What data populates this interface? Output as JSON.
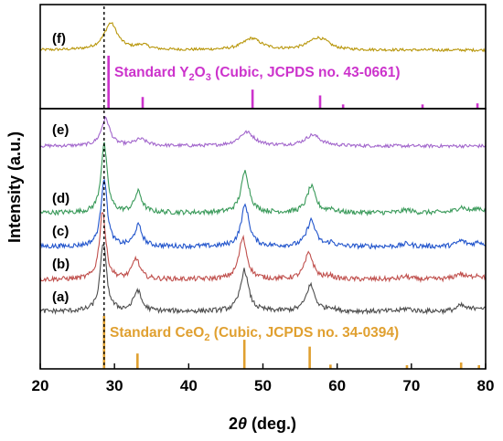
{
  "chart_data": [
    {
      "type": "line",
      "panel": "upper",
      "xlim": [
        20,
        80
      ],
      "ylabel": "Intensity (a.u.)",
      "dashed_reference_x": 28.6,
      "series": [
        {
          "name": "(f)",
          "color": "#b8960a",
          "baseline": 0.05,
          "noise": 0.035,
          "peaks": [
            {
              "x": 29.5,
              "h": 0.7,
              "w": 2.2
            },
            {
              "x": 33.8,
              "h": 0.12,
              "w": 2.0
            },
            {
              "x": 48.5,
              "h": 0.3,
              "w": 3.0
            },
            {
              "x": 57.3,
              "h": 0.3,
              "w": 3.0
            },
            {
              "x": 58.5,
              "h": 0.06,
              "w": 1.5
            }
          ]
        }
      ],
      "reference": {
        "label": "Standard Y2O3 (Cubic, JCPDS no. 43-0661)",
        "label_parts": [
          "Standard Y",
          "2",
          "O",
          "3",
          " (Cubic, JCPDS no. 43-0661)"
        ],
        "color": "#cc33cc",
        "lines": [
          {
            "x": 29.2,
            "h": 1.0
          },
          {
            "x": 33.8,
            "h": 0.22
          },
          {
            "x": 48.6,
            "h": 0.36
          },
          {
            "x": 57.7,
            "h": 0.25
          },
          {
            "x": 60.8,
            "h": 0.08
          },
          {
            "x": 71.5,
            "h": 0.08
          },
          {
            "x": 78.9,
            "h": 0.1
          }
        ]
      }
    },
    {
      "type": "line",
      "panel": "lower",
      "xlim": [
        20,
        80
      ],
      "xlabel_parts": [
        "2",
        "θ",
        " (deg.)"
      ],
      "ylabel": "Intensity (a.u.)",
      "dashed_reference_x": 28.6,
      "xticks": [
        20,
        30,
        40,
        50,
        60,
        70,
        80
      ],
      "series": [
        {
          "name": "(e)",
          "color": "#a266cc",
          "noise": 0.03,
          "peaks": [
            {
              "x": 28.8,
              "h": 0.5,
              "w": 1.4
            },
            {
              "x": 33.5,
              "h": 0.12,
              "w": 2.0
            },
            {
              "x": 47.8,
              "h": 0.25,
              "w": 2.5
            },
            {
              "x": 56.7,
              "h": 0.2,
              "w": 2.5
            }
          ]
        },
        {
          "name": "(d)",
          "color": "#3a9a5a",
          "noise": 0.035,
          "peaks": [
            {
              "x": 28.6,
              "h": 1.0,
              "w": 1.0
            },
            {
              "x": 33.2,
              "h": 0.3,
              "w": 1.2
            },
            {
              "x": 47.6,
              "h": 0.6,
              "w": 1.3
            },
            {
              "x": 56.5,
              "h": 0.38,
              "w": 1.4
            },
            {
              "x": 59.2,
              "h": 0.05,
              "w": 1.0
            },
            {
              "x": 69.4,
              "h": 0.04,
              "w": 1.5
            },
            {
              "x": 76.7,
              "h": 0.08,
              "w": 1.5
            },
            {
              "x": 79.1,
              "h": 0.06,
              "w": 1.5
            }
          ]
        },
        {
          "name": "(c)",
          "color": "#2255cc",
          "noise": 0.035,
          "peaks": [
            {
              "x": 28.6,
              "h": 1.0,
              "w": 1.0
            },
            {
              "x": 33.2,
              "h": 0.3,
              "w": 1.2
            },
            {
              "x": 47.6,
              "h": 0.6,
              "w": 1.3
            },
            {
              "x": 56.5,
              "h": 0.38,
              "w": 1.4
            },
            {
              "x": 59.2,
              "h": 0.05,
              "w": 1.0
            },
            {
              "x": 69.4,
              "h": 0.04,
              "w": 1.5
            },
            {
              "x": 76.7,
              "h": 0.08,
              "w": 1.5
            },
            {
              "x": 79.1,
              "h": 0.06,
              "w": 1.5
            }
          ]
        },
        {
          "name": "(b)",
          "color": "#c0504d",
          "noise": 0.035,
          "peaks": [
            {
              "x": 28.4,
              "h": 1.0,
              "w": 1.0
            },
            {
              "x": 32.9,
              "h": 0.3,
              "w": 1.2
            },
            {
              "x": 47.3,
              "h": 0.6,
              "w": 1.3
            },
            {
              "x": 56.2,
              "h": 0.38,
              "w": 1.4
            },
            {
              "x": 59.0,
              "h": 0.05,
              "w": 1.0
            },
            {
              "x": 69.2,
              "h": 0.04,
              "w": 1.5
            },
            {
              "x": 76.5,
              "h": 0.08,
              "w": 1.5
            },
            {
              "x": 78.9,
              "h": 0.06,
              "w": 1.5
            }
          ]
        },
        {
          "name": "(a)",
          "color": "#4d4d4d",
          "noise": 0.035,
          "peaks": [
            {
              "x": 28.5,
              "h": 1.0,
              "w": 1.0
            },
            {
              "x": 33.1,
              "h": 0.3,
              "w": 1.2
            },
            {
              "x": 47.5,
              "h": 0.6,
              "w": 1.3
            },
            {
              "x": 56.4,
              "h": 0.38,
              "w": 1.4
            },
            {
              "x": 59.1,
              "h": 0.05,
              "w": 1.0
            },
            {
              "x": 69.4,
              "h": 0.04,
              "w": 1.5
            },
            {
              "x": 76.7,
              "h": 0.08,
              "w": 1.5
            },
            {
              "x": 79.1,
              "h": 0.06,
              "w": 1.5
            }
          ]
        }
      ],
      "reference": {
        "label": "Standard CeO2 (Cubic, JCPDS no. 34-0394)",
        "label_parts": [
          "Standard CeO",
          "2",
          " (Cubic, JCPDS no. 34-0394)"
        ],
        "color": "#e0a030",
        "lines": [
          {
            "x": 28.6,
            "h": 1.0
          },
          {
            "x": 33.1,
            "h": 0.29
          },
          {
            "x": 47.5,
            "h": 0.55
          },
          {
            "x": 56.3,
            "h": 0.42
          },
          {
            "x": 59.1,
            "h": 0.08
          },
          {
            "x": 69.4,
            "h": 0.07
          },
          {
            "x": 76.7,
            "h": 0.12
          },
          {
            "x": 79.1,
            "h": 0.07
          }
        ]
      }
    }
  ]
}
